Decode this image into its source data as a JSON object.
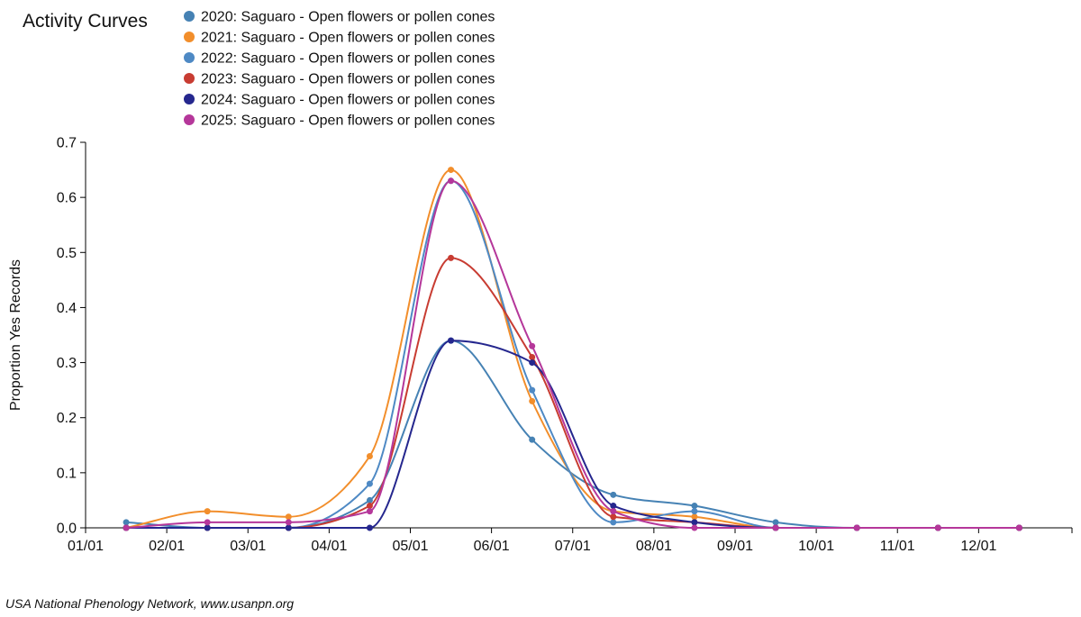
{
  "chart_data": {
    "type": "line",
    "title": "Activity Curves",
    "ylabel": "Proportion Yes Records",
    "xlabel": "",
    "credit": "USA National Phenology Network, www.usanpn.org",
    "x_tick_labels": [
      "01/01",
      "02/01",
      "03/01",
      "04/01",
      "05/01",
      "06/01",
      "07/01",
      "08/01",
      "09/01",
      "10/01",
      "11/01",
      "12/01"
    ],
    "y_ticks": [
      0.0,
      0.1,
      0.2,
      0.3,
      0.4,
      0.5,
      0.6,
      0.7
    ],
    "y_tick_labels": [
      "0.0",
      "0.1",
      "0.2",
      "0.3",
      "0.4",
      "0.5",
      "0.6",
      "0.7"
    ],
    "ylim": [
      0,
      0.7
    ],
    "xlim": [
      0,
      12.15
    ],
    "legend_position": "top",
    "grid": false,
    "x": [
      0.5,
      1.5,
      2.5,
      3.5,
      4.5,
      5.5,
      6.5,
      7.5,
      8.5,
      9.5,
      10.5,
      11.5
    ],
    "series": [
      {
        "name": "2020: Saguaro - Open flowers or pollen cones",
        "color": "#4682b4",
        "values": [
          0.01,
          0.0,
          0.0,
          0.05,
          0.34,
          0.16,
          0.06,
          0.04,
          0.01,
          0.0,
          0.0,
          0.0
        ]
      },
      {
        "name": "2021: Saguaro - Open flowers or pollen cones",
        "color": "#f28e2b",
        "values": [
          0.0,
          0.03,
          0.02,
          0.13,
          0.65,
          0.23,
          0.03,
          0.02,
          0.0,
          0.0,
          0.0,
          0.0
        ]
      },
      {
        "name": "2022: Saguaro - Open flowers or pollen cones",
        "color": "#4e89c4",
        "values": [
          0.0,
          0.0,
          0.0,
          0.08,
          0.63,
          0.25,
          0.01,
          0.03,
          0.0,
          0.0,
          0.0,
          0.0
        ]
      },
      {
        "name": "2023: Saguaro - Open flowers or pollen cones",
        "color": "#c83c32",
        "values": [
          0.0,
          0.0,
          0.0,
          0.04,
          0.49,
          0.31,
          0.02,
          0.01,
          0.0,
          0.0,
          0.0,
          0.0
        ]
      },
      {
        "name": "2024: Saguaro - Open flowers or pollen cones",
        "color": "#25278e",
        "values": [
          0.0,
          0.0,
          0.0,
          0.0,
          0.34,
          0.3,
          0.04,
          0.01,
          0.0,
          0.0,
          0.0,
          0.0
        ]
      },
      {
        "name": "2025: Saguaro - Open flowers or pollen cones",
        "color": "#b5379a",
        "values": [
          0.0,
          0.01,
          0.01,
          0.03,
          0.63,
          0.33,
          0.03,
          0.0,
          0.0,
          0.0,
          0.0,
          0.0
        ]
      }
    ]
  }
}
